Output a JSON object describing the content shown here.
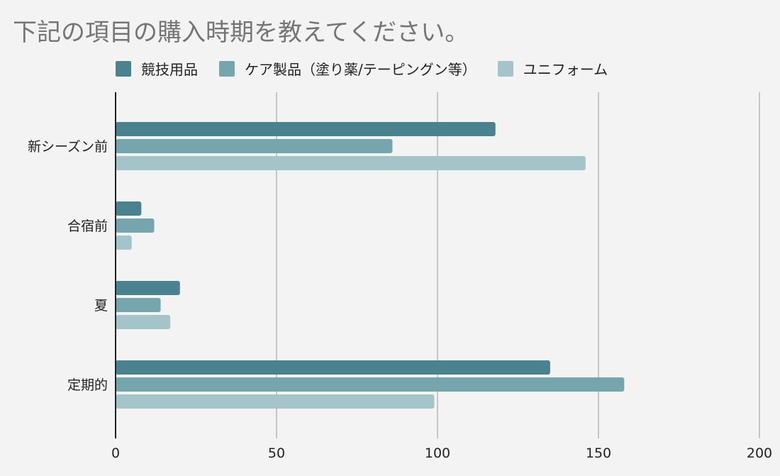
{
  "chart_data": {
    "type": "bar",
    "orientation": "horizontal",
    "title": "下記の項目の購入時期を教えてください。",
    "categories": [
      "新シーズン前",
      "合宿前",
      "夏",
      "定期的"
    ],
    "series": [
      {
        "name": "競技用品",
        "color": "#4a8290",
        "values": [
          118,
          8,
          20,
          135
        ]
      },
      {
        "name": "ケア製品（塗り薬/テーピングン等）",
        "color": "#77a5ae",
        "values": [
          86,
          12,
          14,
          158
        ]
      },
      {
        "name": "ユニフォーム",
        "color": "#a5c4c9",
        "values": [
          146,
          5,
          17,
          99
        ]
      }
    ],
    "xlim": [
      0,
      200
    ],
    "xticks": [
      "0",
      "50",
      "100",
      "150",
      "200"
    ],
    "grid": true,
    "legend_position": "top"
  }
}
